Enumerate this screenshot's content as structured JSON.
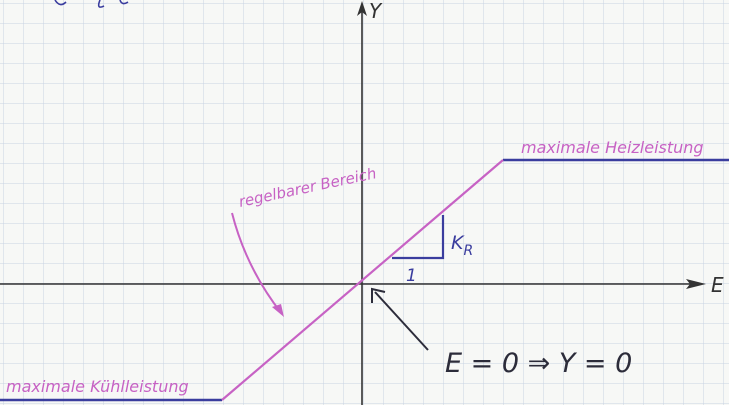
{
  "axes": {
    "x_label": "E",
    "y_label": "Y"
  },
  "labels": {
    "max_heating": "maximale Heizleistung",
    "controllable_range": "regelbarer Bereich",
    "max_cooling": "maximale Kühlleistung",
    "gain": "K",
    "gain_subscript": "R",
    "slope_run": "1",
    "condition": "E = 0  ⇒  Y = 0"
  },
  "colors": {
    "grid": "#c9d3e3",
    "axis": "#333333",
    "pen_blue": "#3a3d9e",
    "pen_pink": "#c762c4",
    "ink_dark": "#2c2c3a"
  }
}
